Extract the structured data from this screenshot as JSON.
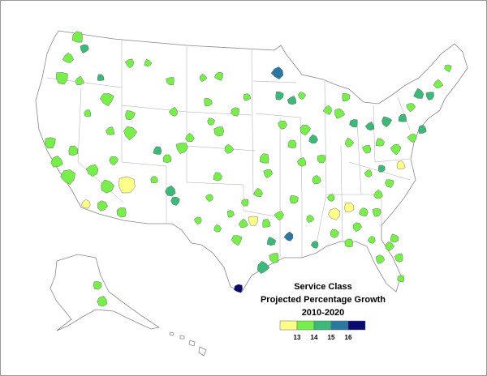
{
  "map": {
    "title": [
      "Service Class",
      "Projected Percentage Growth",
      "2010-2020"
    ],
    "legend": {
      "colors": [
        "#ffff88",
        "#77ee4a",
        "#3cb878",
        "#2a78a0",
        "#0a0a70"
      ],
      "breaks": [
        13,
        14,
        15,
        16
      ]
    }
  }
}
